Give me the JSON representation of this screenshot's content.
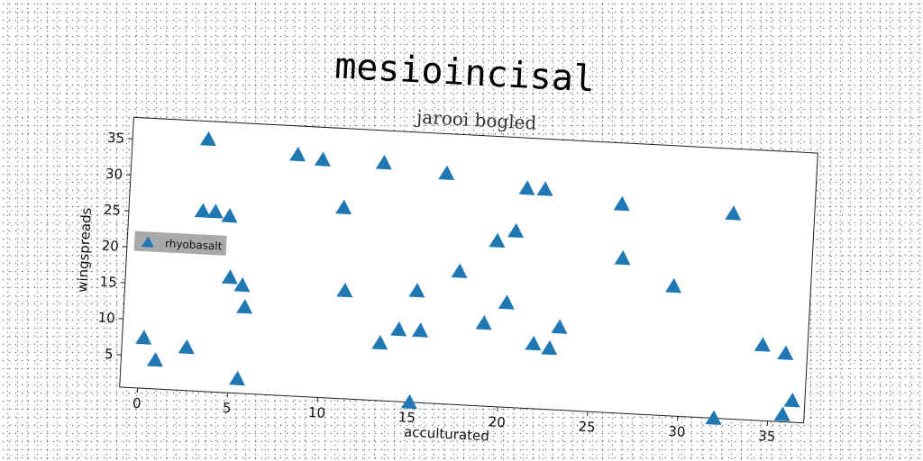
{
  "chart_data": {
    "type": "scatter",
    "title": "mesioincisal",
    "subtitle": "jarooi bogled",
    "xlabel": "acculturated",
    "ylabel": "wingspreads",
    "xlim": [
      -1,
      37
    ],
    "ylim": [
      0.5,
      38
    ],
    "xticks": [
      0,
      5,
      10,
      15,
      20,
      25,
      30,
      35
    ],
    "yticks": [
      5,
      10,
      15,
      20,
      25,
      30,
      35
    ],
    "grid": false,
    "legend_position": "center-left",
    "series": [
      {
        "name": "rhyobasalt",
        "color": "#1f77b4",
        "marker": "triangle",
        "points": [
          [
            3.2,
            35.5
          ],
          [
            8.2,
            34.0
          ],
          [
            9.6,
            33.5
          ],
          [
            13.0,
            33.5
          ],
          [
            16.5,
            32.5
          ],
          [
            21.0,
            31.0
          ],
          [
            22.0,
            31.0
          ],
          [
            26.3,
            29.5
          ],
          [
            32.5,
            29.0
          ],
          [
            3.1,
            25.5
          ],
          [
            3.8,
            25.5
          ],
          [
            4.6,
            25.0
          ],
          [
            10.9,
            27.0
          ],
          [
            19.5,
            23.5
          ],
          [
            20.5,
            25.0
          ],
          [
            26.5,
            22.0
          ],
          [
            29.4,
            18.5
          ],
          [
            17.5,
            19.0
          ],
          [
            4.8,
            16.5
          ],
          [
            5.5,
            15.5
          ],
          [
            5.7,
            12.5
          ],
          [
            11.2,
            15.5
          ],
          [
            15.2,
            16.0
          ],
          [
            20.2,
            15.0
          ],
          [
            14.3,
            10.5
          ],
          [
            15.5,
            10.5
          ],
          [
            13.3,
            8.5
          ],
          [
            19.0,
            12.0
          ],
          [
            21.8,
            9.5
          ],
          [
            22.7,
            9.0
          ],
          [
            23.2,
            12.0
          ],
          [
            34.5,
            11.0
          ],
          [
            35.8,
            10.0
          ],
          [
            0.2,
            7.5
          ],
          [
            0.9,
            4.5
          ],
          [
            2.6,
            6.5
          ],
          [
            5.5,
            2.5
          ],
          [
            15.1,
            0.5
          ],
          [
            32.0,
            0.5
          ],
          [
            35.8,
            1.5
          ],
          [
            36.3,
            3.5
          ]
        ]
      }
    ]
  }
}
